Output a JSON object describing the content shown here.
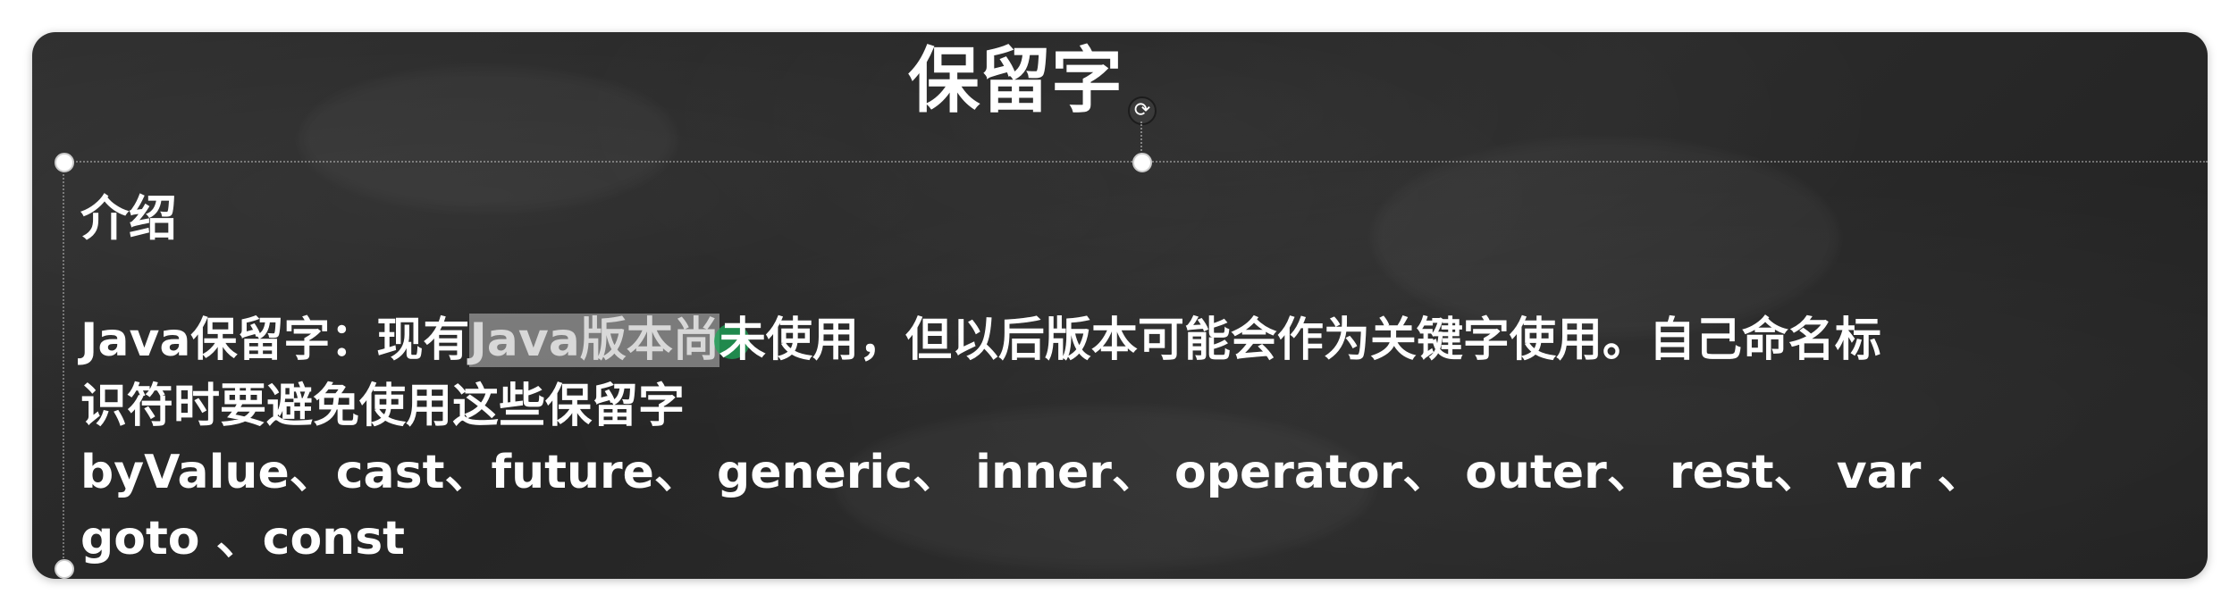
{
  "slide": {
    "title": "保留字",
    "heading": "介绍",
    "line1": {
      "before": "Java保留字：现有",
      "highlight": "Java版本尚",
      "cursor_char": "未",
      "after": "使用，但以后版本可能会作为关键字使用。自己命名标"
    },
    "line2": "识符时要避免使用这些保留字",
    "line3": "byValue、cast、future、 generic、 inner、 operator、 outer、 rest、 var 、",
    "line4": "goto 、const"
  },
  "icons": {
    "rotate": "rotate-icon"
  },
  "colors": {
    "board": "#262626",
    "text": "#ffffff",
    "highlight": "#bebebe",
    "cursor": "#1eaa5a"
  }
}
